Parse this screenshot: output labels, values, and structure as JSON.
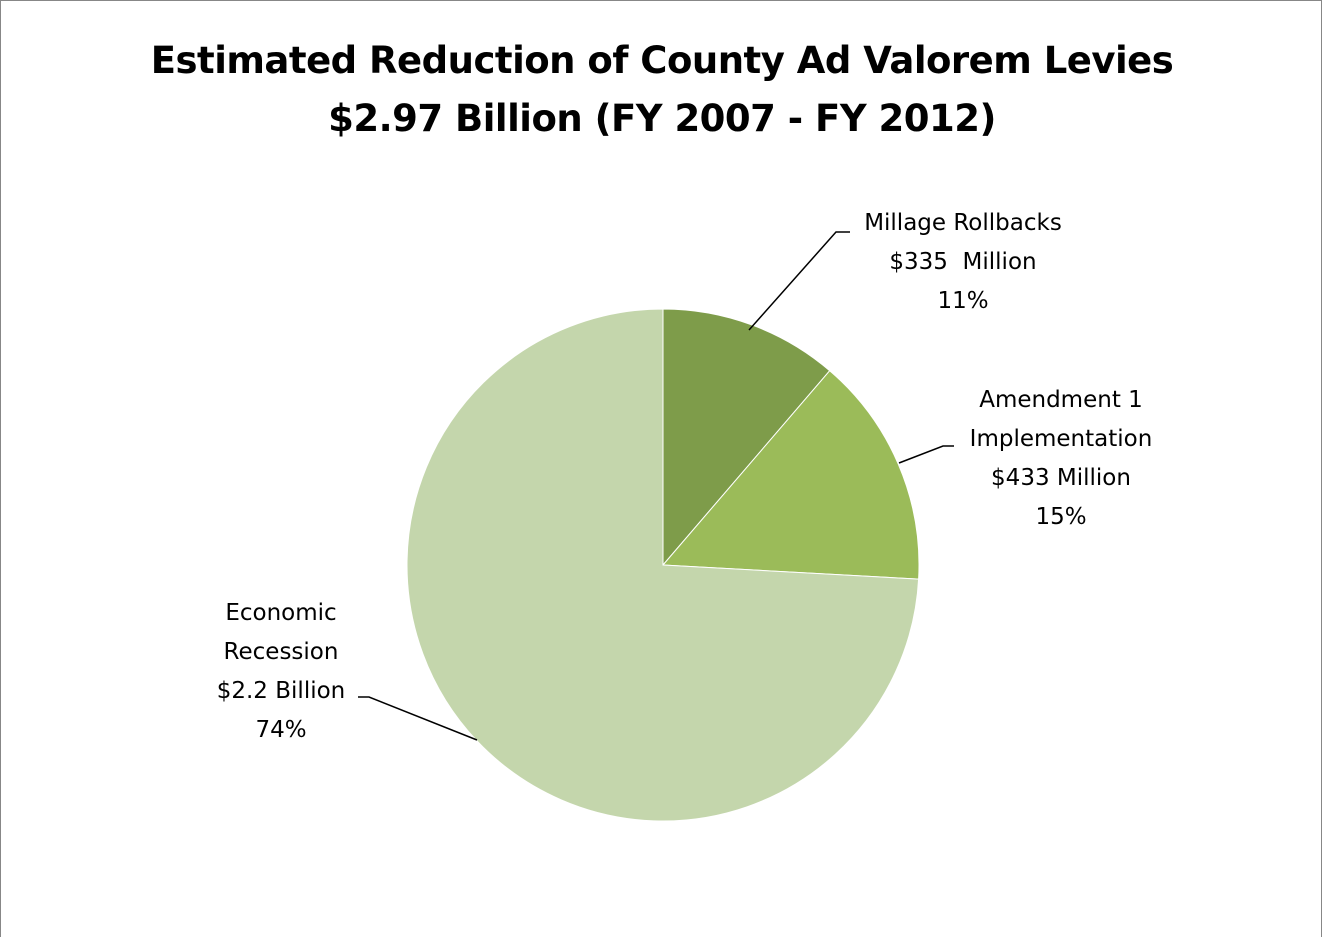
{
  "chart_data": {
    "type": "pie",
    "title_line1": "Estimated Reduction of County Ad Valorem Levies",
    "title_line2": "$2.97 Billion (FY 2007 - FY 2012)",
    "slices": [
      {
        "category": "Millage Rollbacks",
        "amount_label": "$335  Million",
        "percent_label": "11%",
        "value": 335,
        "color": "#7E9C4A"
      },
      {
        "category": "Amendment 1 Implementation",
        "label_lines": [
          "Amendment 1",
          "Implementation"
        ],
        "amount_label": "$433 Million",
        "percent_label": "15%",
        "value": 433,
        "color": "#9BBB59"
      },
      {
        "category": "Economic Recession",
        "label_lines": [
          "Economic",
          "Recession"
        ],
        "amount_label": "$2.2 Billion",
        "percent_label": "74%",
        "value": 2200,
        "color": "#C4D6AC"
      }
    ],
    "legend": "none"
  }
}
